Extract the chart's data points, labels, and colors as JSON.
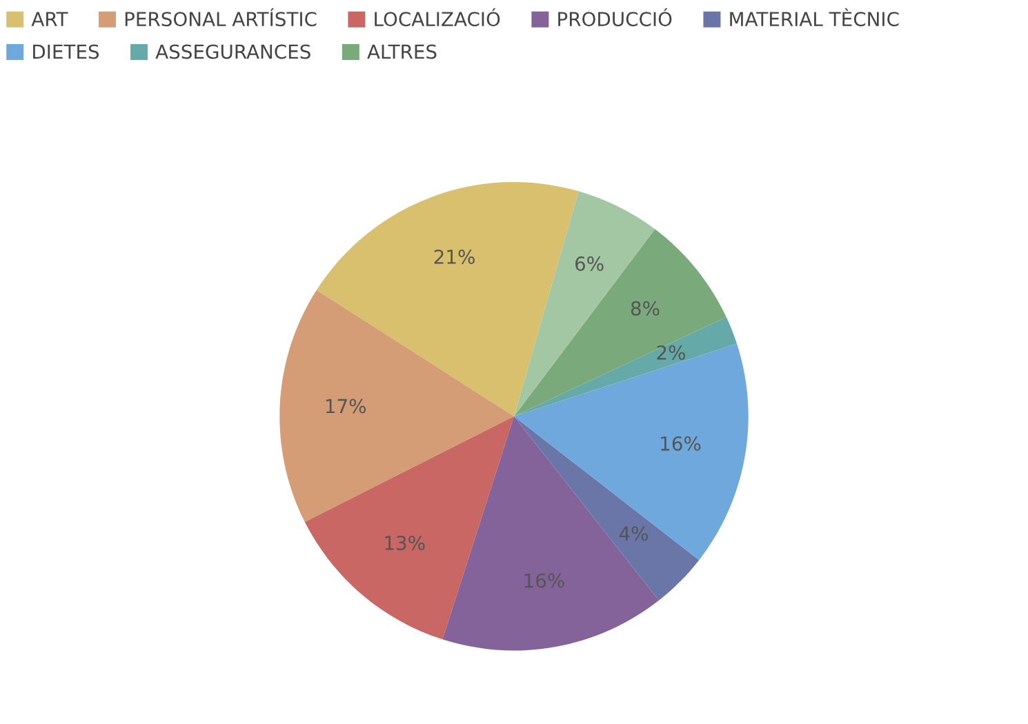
{
  "chart_data": {
    "type": "pie",
    "categories": [
      "ART",
      "PERSONAL ARTÍSTIC",
      "LOCALIZACIÓ",
      "PRODUCCIÓ",
      "MATERIAL TÈCNIC",
      "DIETES",
      "ASSEGURANCES",
      "ALTRES",
      null
    ],
    "values": [
      21,
      17,
      13,
      16,
      4,
      16,
      2,
      8,
      6
    ],
    "colors": [
      "#d8c06e",
      "#d49d76",
      "#c86764",
      "#836399",
      "#6a76a8",
      "#6fa8dc",
      "#65aaa8",
      "#7aaa7c",
      "#a2c7a2"
    ],
    "value_labels": [
      "21%",
      "17%",
      "13%",
      "16%",
      "4%",
      "16%",
      "2%",
      "8%",
      "6%"
    ],
    "legend": "top"
  }
}
